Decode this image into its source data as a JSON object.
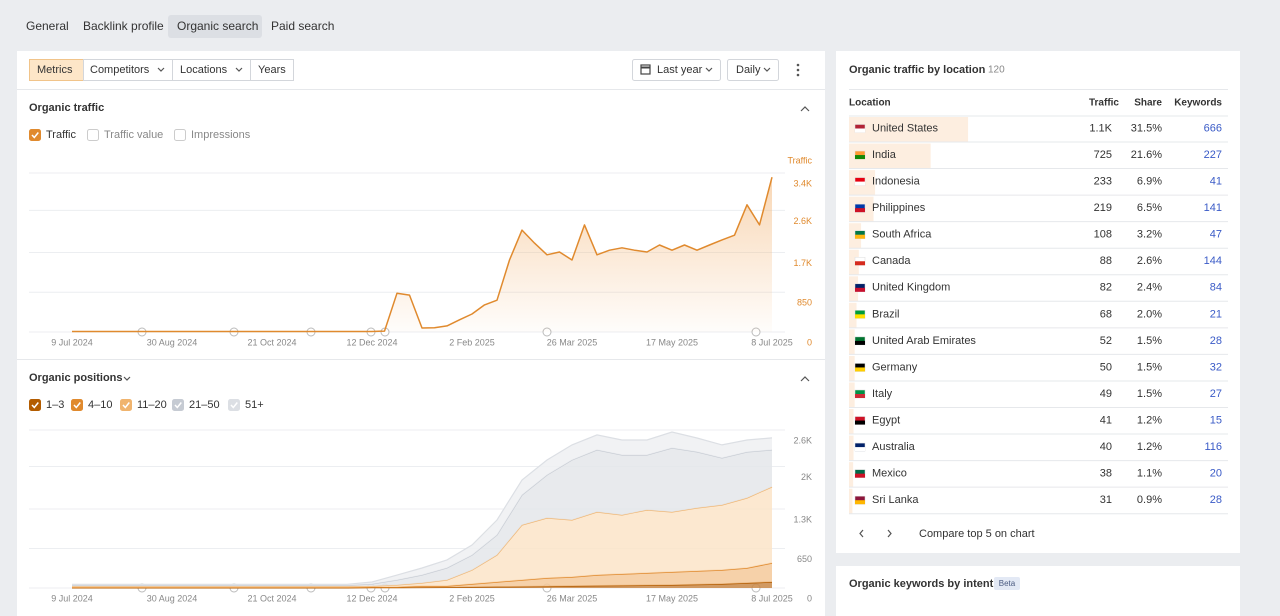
{
  "tabs": [
    "General",
    "Backlink profile",
    "Organic search",
    "Paid search"
  ],
  "toolbar": {
    "buttons": [
      "Metrics",
      "Competitors",
      "Locations",
      "Years"
    ],
    "period": "Last year",
    "granularity": "Daily"
  },
  "traffic_chart": {
    "type": "line",
    "title": "Organic traffic",
    "toggles": [
      "Traffic",
      "Traffic value",
      "Impressions"
    ],
    "categories": [
      "9 Jul 2024",
      null,
      null,
      null,
      null,
      null,
      null,
      null,
      "30 Aug 2024",
      null,
      null,
      null,
      null,
      null,
      null,
      null,
      "21 Oct 2024",
      null,
      null,
      null,
      null,
      null,
      null,
      null,
      "12 Dec 2024",
      null,
      null,
      null,
      null,
      null,
      null,
      null,
      "2 Feb 2025",
      null,
      null,
      null,
      null,
      null,
      null,
      null,
      "26 Mar 2025",
      null,
      null,
      null,
      null,
      null,
      null,
      null,
      "17 May 2025",
      null,
      null,
      null,
      null,
      null,
      null,
      null,
      "8 Jul 2025"
    ],
    "series": [
      {
        "name": "Traffic",
        "color": "#e08a2e",
        "values": [
          10,
          10,
          10,
          10,
          10,
          10,
          10,
          10,
          10,
          10,
          10,
          10,
          10,
          10,
          10,
          10,
          10,
          10,
          10,
          10,
          10,
          10,
          10,
          10,
          10,
          20,
          830,
          790,
          85,
          90,
          130,
          260,
          385,
          580,
          680,
          1540,
          2180,
          1900,
          1650,
          1710,
          1540,
          2290,
          1650,
          1750,
          1800,
          1750,
          1710,
          1860,
          1750,
          1860,
          1750,
          1860,
          1970,
          2070,
          2720,
          2290,
          3310
        ]
      }
    ],
    "ylim": [
      0,
      3400
    ],
    "yticks": [
      0,
      850,
      {
        "value": 1700,
        "label": "1.7K"
      },
      {
        "value": 2600,
        "label": "2.6K"
      },
      {
        "value": 3400,
        "label": "3.4K"
      }
    ],
    "grid": true
  },
  "positions_chart": {
    "type": "area",
    "title": "Organic positions",
    "stacked": true,
    "categories": [
      "9 Jul 2024",
      null,
      null,
      null,
      "30 Aug 2024",
      null,
      null,
      null,
      "21 Oct 2024",
      null,
      null,
      null,
      "12 Dec 2024",
      null,
      null,
      null,
      "2 Feb 2025",
      null,
      null,
      null,
      "26 Mar 2025",
      null,
      null,
      null,
      "17 May 2025",
      null,
      null,
      null,
      "8 Jul 2025"
    ],
    "series": [
      {
        "name": "1–3",
        "color": "#b35c00",
        "values": [
          5,
          5,
          5,
          5,
          5,
          5,
          5,
          5,
          5,
          5,
          5,
          5,
          8,
          8,
          10,
          12,
          16,
          20,
          23,
          26,
          33,
          36,
          41,
          46,
          49,
          58,
          66,
          82,
          99
        ]
      },
      {
        "name": "4–10",
        "color": "#e08a2e",
        "values": [
          8,
          8,
          8,
          8,
          8,
          8,
          8,
          8,
          8,
          8,
          8,
          8,
          8,
          8,
          23,
          21,
          49,
          79,
          109,
          138,
          148,
          178,
          189,
          201,
          214,
          222,
          230,
          247,
          313
        ]
      },
      {
        "name": "11–20",
        "color": "#f0b46e",
        "values": [
          16,
          16,
          16,
          16,
          16,
          16,
          16,
          16,
          16,
          16,
          16,
          16,
          16,
          33,
          49,
          99,
          230,
          444,
          905,
          988,
          938,
          1037,
          971,
          1037,
          988,
          1037,
          1070,
          1152,
          1251
        ]
      },
      {
        "name": "21–50",
        "color": "#c6cbd3",
        "values": [
          16,
          16,
          16,
          16,
          16,
          16,
          16,
          16,
          16,
          16,
          16,
          16,
          33,
          82,
          132,
          198,
          247,
          329,
          494,
          708,
          988,
          1021,
          988,
          905,
          1053,
          922,
          774,
          757,
          609
        ]
      },
      {
        "name": "51+",
        "color": "#dcdfe4",
        "values": [
          16,
          16,
          16,
          16,
          16,
          16,
          16,
          16,
          16,
          16,
          16,
          16,
          33,
          82,
          115,
          132,
          165,
          247,
          247,
          247,
          247,
          247,
          247,
          247,
          263,
          230,
          214,
          198,
          198
        ]
      }
    ],
    "ylim": [
      0,
      2600
    ],
    "yticks": [
      0,
      650,
      {
        "value": 1300,
        "label": "1.3K"
      },
      {
        "value": 2000,
        "label": "2K"
      },
      {
        "value": 2600,
        "label": "2.6K"
      }
    ],
    "grid": true
  },
  "locations": {
    "title": "Organic traffic by location",
    "count": 120,
    "columns": [
      "Location",
      "Traffic",
      "Share",
      "Keywords"
    ],
    "rows": [
      {
        "location": "United States",
        "traffic": "1.1K",
        "share": 31.5,
        "share_label": "31.5%",
        "keywords": 666
      },
      {
        "location": "India",
        "traffic": "725",
        "share": 21.6,
        "share_label": "21.6%",
        "keywords": 227
      },
      {
        "location": "Indonesia",
        "traffic": "233",
        "share": 6.9,
        "share_label": "6.9%",
        "keywords": 41
      },
      {
        "location": "Philippines",
        "traffic": "219",
        "share": 6.5,
        "share_label": "6.5%",
        "keywords": 141
      },
      {
        "location": "South Africa",
        "traffic": "108",
        "share": 3.2,
        "share_label": "3.2%",
        "keywords": 47
      },
      {
        "location": "Canada",
        "traffic": "88",
        "share": 2.6,
        "share_label": "2.6%",
        "keywords": 144
      },
      {
        "location": "United Kingdom",
        "traffic": "82",
        "share": 2.4,
        "share_label": "2.4%",
        "keywords": 84
      },
      {
        "location": "Brazil",
        "traffic": "68",
        "share": 2.0,
        "share_label": "2.0%",
        "keywords": 21
      },
      {
        "location": "United Arab Emirates",
        "traffic": "52",
        "share": 1.5,
        "share_label": "1.5%",
        "keywords": 28
      },
      {
        "location": "Germany",
        "traffic": "50",
        "share": 1.5,
        "share_label": "1.5%",
        "keywords": 32
      },
      {
        "location": "Italy",
        "traffic": "49",
        "share": 1.5,
        "share_label": "1.5%",
        "keywords": 27
      },
      {
        "location": "Egypt",
        "traffic": "41",
        "share": 1.2,
        "share_label": "1.2%",
        "keywords": 15
      },
      {
        "location": "Australia",
        "traffic": "40",
        "share": 1.2,
        "share_label": "1.2%",
        "keywords": 116
      },
      {
        "location": "Mexico",
        "traffic": "38",
        "share": 1.1,
        "share_label": "1.1%",
        "keywords": 20
      },
      {
        "location": "Sri Lanka",
        "traffic": "31",
        "share": 0.9,
        "share_label": "0.9%",
        "keywords": 28
      }
    ],
    "footer": "Compare top 5 on chart"
  },
  "intent": {
    "title": "Organic keywords by intent",
    "badge": "Beta"
  }
}
